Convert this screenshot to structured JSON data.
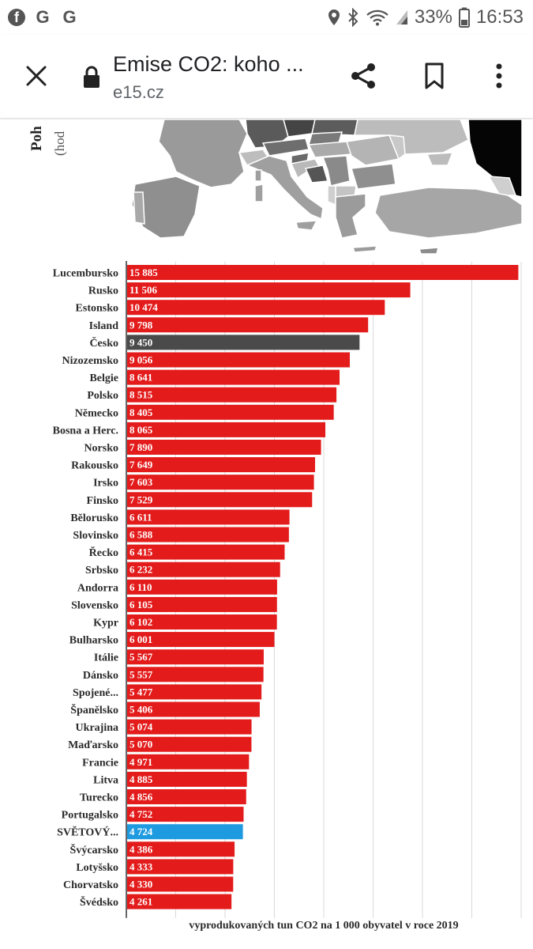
{
  "status_bar": {
    "apps": [
      "f",
      "G",
      "G"
    ],
    "battery": "33%",
    "time": "16:53"
  },
  "browser": {
    "title": "Emise CO2: koho ...",
    "domain": "e15.cz",
    "icons": [
      "close-icon",
      "lock-icon",
      "share-icon",
      "bookmark-icon",
      "more-vert-icon"
    ]
  },
  "article": {
    "heading_fragment": "Poh",
    "subheading_fragment": "(hod"
  },
  "colors": {
    "bar": "#e31b1b",
    "highlight_czech": "#4a4a4a",
    "highlight_world": "#1e9be0",
    "axis": "#333333",
    "grid": "#d9d9d9"
  },
  "chart_data": {
    "type": "bar",
    "orientation": "horizontal",
    "xlabel": "vyprodukovaných tun CO2 na 1 000 obyvatel v roce 2019",
    "xlim": [
      0,
      16000
    ],
    "grid": "vertical",
    "categories": [
      "Lucembursko",
      "Rusko",
      "Estonsko",
      "Island",
      "Česko",
      "Nizozemsko",
      "Belgie",
      "Polsko",
      "Německo",
      "Bosna a Herc.",
      "Norsko",
      "Rakousko",
      "Irsko",
      "Finsko",
      "Bělorusko",
      "Slovinsko",
      "Řecko",
      "Srbsko",
      "Andorra",
      "Slovensko",
      "Kypr",
      "Bulharsko",
      "Itálie",
      "Dánsko",
      "Spojené...",
      "Španělsko",
      "Ukrajina",
      "Maďarsko",
      "Francie",
      "Litva",
      "Turecko",
      "Portugalsko",
      "SVĚTOVÝ...",
      "Švýcarsko",
      "Lotyšsko",
      "Chorvatsko",
      "Švédsko"
    ],
    "values": [
      15885,
      11506,
      10474,
      9798,
      9450,
      9056,
      8641,
      8515,
      8405,
      8065,
      7890,
      7649,
      7603,
      7529,
      6611,
      6588,
      6415,
      6232,
      6110,
      6105,
      6102,
      6001,
      5567,
      5557,
      5477,
      5406,
      5074,
      5070,
      4971,
      4885,
      4856,
      4752,
      4724,
      4386,
      4333,
      4330,
      4261
    ],
    "value_labels": [
      "15 885",
      "11 506",
      "10 474",
      "9 798",
      "9 450",
      "9 056",
      "8 641",
      "8 515",
      "8 405",
      "8 065",
      "7 890",
      "7 649",
      "7 603",
      "7 529",
      "6 611",
      "6 588",
      "6 415",
      "6 232",
      "6 110",
      "6 105",
      "6 102",
      "6 001",
      "5 567",
      "5 557",
      "5 477",
      "5 406",
      "5 074",
      "5 070",
      "4 971",
      "4 885",
      "4 856",
      "4 752",
      "4 724",
      "4 386",
      "4 333",
      "4 330",
      "4 261"
    ],
    "highlight": {
      "Česko": "dark",
      "SVĚTOVÝ...": "blue"
    }
  }
}
